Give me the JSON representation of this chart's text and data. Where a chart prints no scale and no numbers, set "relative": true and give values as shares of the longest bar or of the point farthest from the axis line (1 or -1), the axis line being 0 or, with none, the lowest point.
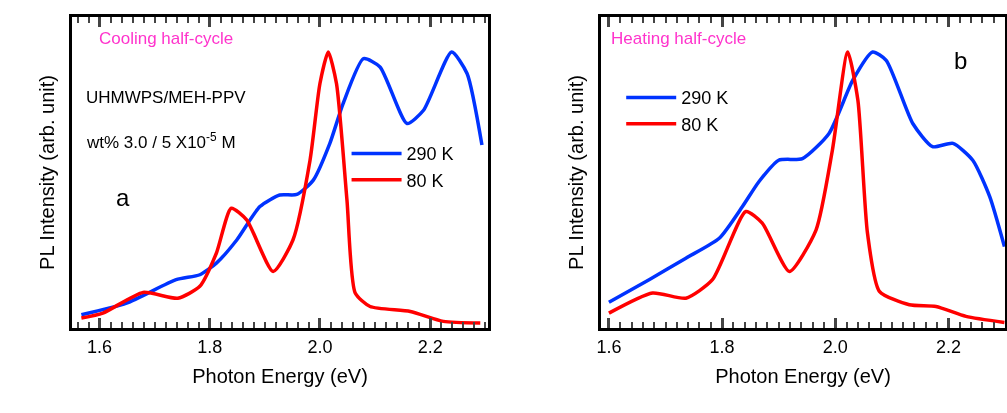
{
  "chart_data": [
    {
      "type": "line",
      "relative": true,
      "xlabel": "Photon Energy (eV)",
      "ylabel": "PL Intensity (arb. unit)",
      "xlim": [
        1.55,
        2.305
      ],
      "xticks": [
        1.6,
        1.8,
        {
          "value": 2,
          "label": "2.0"
        },
        2.2
      ],
      "legend": "right",
      "grid": false,
      "line_style": "solid",
      "marker": "none",
      "annotations": [
        "Cooling half-cycle",
        "UHMWPS/MEH-PPV",
        "wt% 3.0 / 5 X10$^{-5}$ M",
        "a"
      ],
      "series": [
        {
          "name": "290 K",
          "color": "#0033ff",
          "x": [
            1.567,
            1.649,
            1.739,
            1.782,
            1.812,
            1.849,
            1.891,
            1.927,
            1.958,
            1.988,
            2.018,
            2.042,
            2.079,
            2.109,
            2.158,
            2.188,
            2.239,
            2.267,
            2.294
          ],
          "values": [
            0.048,
            0.09,
            0.175,
            0.193,
            0.235,
            0.319,
            0.44,
            0.482,
            0.484,
            0.536,
            0.669,
            0.813,
            0.976,
            0.946,
            0.741,
            0.789,
            1.0,
            0.922,
            0.663
          ]
        },
        {
          "name": "80 K",
          "color": "#ff0000",
          "x": [
            1.567,
            1.606,
            1.679,
            1.742,
            1.782,
            1.812,
            1.839,
            1.867,
            1.915,
            1.951,
            1.982,
            2.0,
            2.015,
            2.03,
            2.049,
            2.064,
            2.091,
            2.164,
            2.224,
            2.291
          ],
          "values": [
            0.036,
            0.054,
            0.129,
            0.108,
            0.151,
            0.271,
            0.434,
            0.392,
            0.205,
            0.319,
            0.608,
            0.886,
            1.0,
            0.886,
            0.464,
            0.127,
            0.078,
            0.06,
            0.024,
            0.018
          ]
        }
      ]
    },
    {
      "type": "line",
      "relative": true,
      "xlabel": "Photon Energy (eV)",
      "ylabel": "PL Intensity (arb. unit)",
      "xlim": [
        1.586,
        2.3
      ],
      "xticks": [
        1.6,
        1.8,
        {
          "value": 2,
          "label": "2.0"
        },
        2.2
      ],
      "legend": "top left",
      "grid": false,
      "line_style": "solid",
      "marker": "none",
      "annotations": [
        "Heating half-cycle",
        "b"
      ],
      "series": [
        {
          "name": "290 K",
          "color": "#0033ff",
          "x": [
            1.6,
            1.671,
            1.736,
            1.795,
            1.836,
            1.865,
            1.9,
            1.942,
            1.989,
            2.031,
            2.066,
            2.09,
            2.137,
            2.172,
            2.208,
            2.243,
            2.273,
            2.299
          ],
          "values": [
            0.093,
            0.175,
            0.253,
            0.325,
            0.44,
            0.53,
            0.608,
            0.614,
            0.705,
            0.898,
            1.0,
            0.97,
            0.741,
            0.657,
            0.669,
            0.608,
            0.476,
            0.295
          ]
        },
        {
          "name": "80 K",
          "color": "#ff0000",
          "x": [
            1.6,
            1.677,
            1.736,
            1.783,
            1.842,
            1.871,
            1.919,
            1.966,
            1.995,
            2.022,
            2.04,
            2.057,
            2.078,
            2.131,
            2.178,
            2.231,
            2.299
          ],
          "values": [
            0.054,
            0.127,
            0.108,
            0.175,
            0.422,
            0.38,
            0.205,
            0.355,
            0.645,
            1.0,
            0.825,
            0.343,
            0.133,
            0.084,
            0.078,
            0.042,
            0.02
          ]
        }
      ]
    }
  ]
}
